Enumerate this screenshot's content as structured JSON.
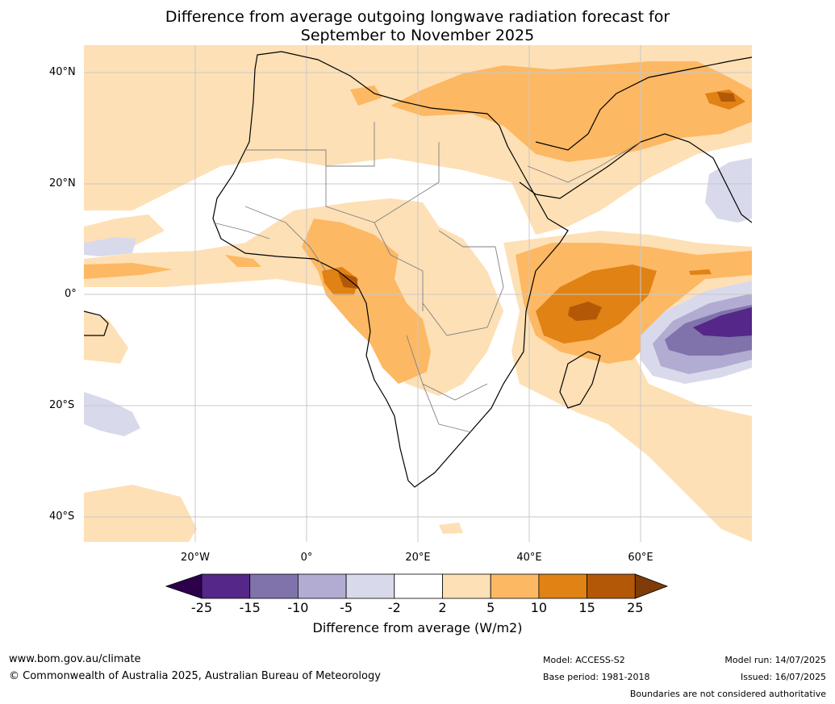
{
  "title_line1": "Difference from average outgoing longwave radiation forecast for",
  "title_line2": "September to November 2025",
  "lat_labels": [
    "40°N",
    "20°N",
    "0°",
    "20°S",
    "40°S"
  ],
  "lon_labels": [
    "20°W",
    "0°",
    "20°E",
    "40°E",
    "60°E"
  ],
  "colorbar": {
    "ticks": [
      "-25",
      "-15",
      "-10",
      "-5",
      "-2",
      "2",
      "5",
      "10",
      "15",
      "25"
    ],
    "colors": [
      "#2d004b",
      "#542788",
      "#8073ac",
      "#b2abd2",
      "#d8daeb",
      "#ffffff",
      "#fee0b6",
      "#fdb863",
      "#e08214",
      "#b35806",
      "#7f3b08"
    ],
    "label": "Difference from average (W/m2)"
  },
  "footer": {
    "url": "www.bom.gov.au/climate",
    "copyright": "© Commonwealth of Australia 2025, Australian Bureau of Meteorology",
    "model": "Model: ACCESS-S2",
    "base_period": "Base period: 1981-2018",
    "model_run": "Model run: 14/07/2025",
    "issued": "Issued: 16/07/2025",
    "disclaimer": "Boundaries are not considered authoritative"
  }
}
